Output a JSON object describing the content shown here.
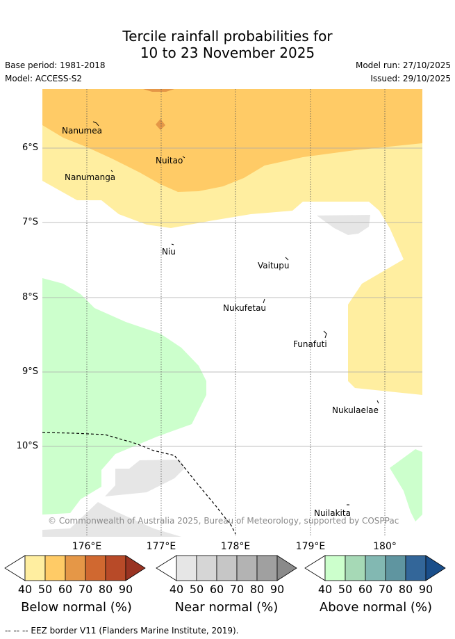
{
  "title": {
    "line1": "Tercile rainfall probabilities for",
    "line2": "10 to 23 November 2025"
  },
  "meta": {
    "base_period": "Base period: 1981-2018",
    "model": "Model: ACCESS-S2",
    "model_run": "Model run: 27/10/2025",
    "issued": "Issued: 29/10/2025"
  },
  "map": {
    "lat_labels": [
      "6°S",
      "7°S",
      "8°S",
      "9°S",
      "10°S"
    ],
    "lon_labels": [
      "176°E",
      "177°E",
      "178°E",
      "179°E",
      "180°"
    ],
    "places": [
      "Nanumea",
      "Nuitao",
      "Nanumanga",
      "Niu",
      "Vaitupu",
      "Nukufetau",
      "Funafuti",
      "Nukulaelae",
      "Nuilakita"
    ],
    "credit": "© Commonwealth of Australia 2025, Bureau of Meteorology, supported by COSPPac"
  },
  "legend": {
    "below": {
      "label": "Below normal (%)",
      "ticks": [
        "40",
        "50",
        "60",
        "70",
        "80",
        "90"
      ],
      "colors": [
        "#ffeea0",
        "#ffcb66",
        "#e59747",
        "#d06830",
        "#b84a28",
        "#993322"
      ]
    },
    "near": {
      "label": "Near normal (%)",
      "ticks": [
        "40",
        "50",
        "60",
        "70",
        "80",
        "90"
      ],
      "colors": [
        "#e6e6e6",
        "#d6d6d6",
        "#c6c6c6",
        "#b3b3b3",
        "#a0a0a0",
        "#8a8a8a"
      ]
    },
    "above": {
      "label": "Above normal (%)",
      "ticks": [
        "40",
        "50",
        "60",
        "70",
        "80",
        "90"
      ],
      "colors": [
        "#ccffcc",
        "#a6d9b6",
        "#82b8b2",
        "#5f95a0",
        "#336699",
        "#1a4e8a"
      ]
    }
  },
  "footer": "--  --  -- EEZ border V11 (Flanders Marine Institute, 2019)."
}
